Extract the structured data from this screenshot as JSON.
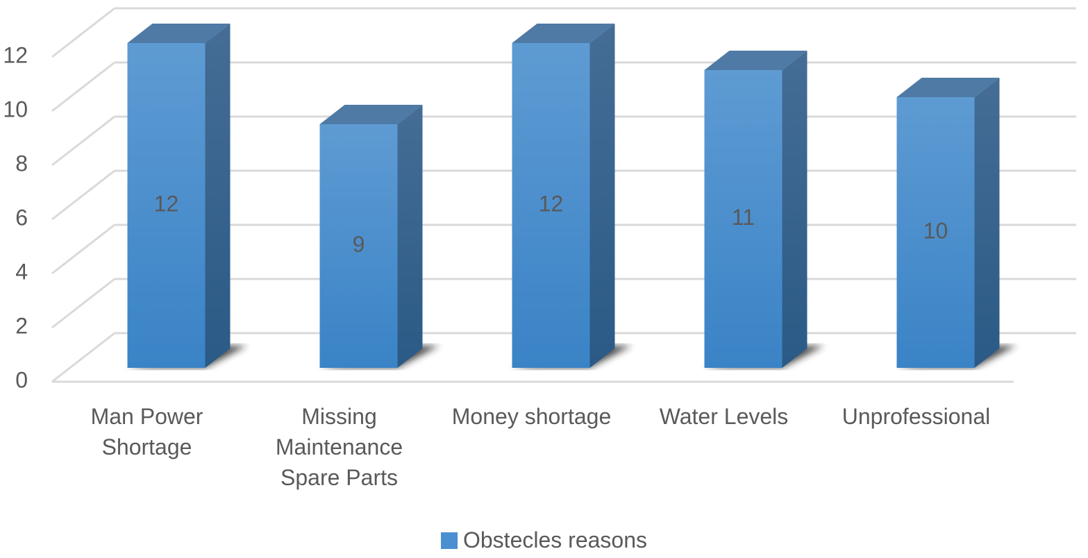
{
  "chart_data": {
    "type": "bar3d",
    "categories": [
      "Man Power Shortage",
      "Missing Maintenance Spare Parts",
      "Money shortage",
      "Water Levels",
      "Unprofessional"
    ],
    "series": [
      {
        "name": "Obstecles reasons",
        "color": "#4a8fd0",
        "values": [
          12,
          9,
          12,
          11,
          10
        ]
      }
    ],
    "ylim": [
      0,
      12
    ],
    "yticks": [
      0,
      2,
      4,
      6,
      8,
      10,
      12
    ],
    "grid": true,
    "legend": "bottom"
  }
}
